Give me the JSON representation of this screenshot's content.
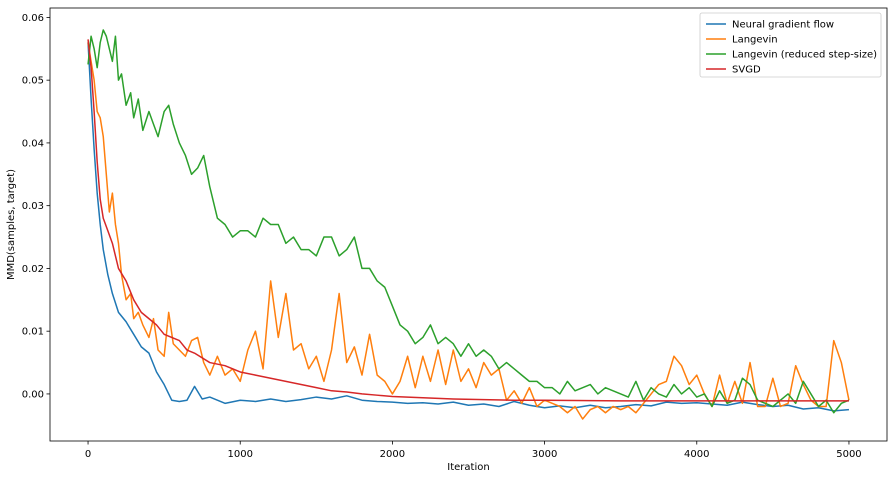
{
  "chart_data": {
    "type": "line",
    "title": "",
    "xlabel": "Iteration",
    "ylabel": "MMD(samples, target)",
    "xlim": [
      -250,
      5250
    ],
    "ylim": [
      -0.0075,
      0.0615
    ],
    "xticks": [
      0,
      1000,
      2000,
      3000,
      4000,
      5000
    ],
    "xtick_labels": [
      "0",
      "1000",
      "2000",
      "3000",
      "4000",
      "5000"
    ],
    "yticks": [
      0.0,
      0.01,
      0.02,
      0.03,
      0.04,
      0.05,
      0.06
    ],
    "ytick_labels": [
      "0.00",
      "0.01",
      "0.02",
      "0.03",
      "0.04",
      "0.05",
      "0.06"
    ],
    "grid": false,
    "legend_position": "top-right",
    "series": [
      {
        "name": "Neural gradient flow",
        "color": "#1f77b4",
        "x": [
          0,
          20,
          40,
          60,
          80,
          100,
          130,
          160,
          200,
          250,
          300,
          350,
          400,
          450,
          500,
          550,
          600,
          650,
          700,
          750,
          800,
          900,
          1000,
          1100,
          1200,
          1300,
          1400,
          1500,
          1600,
          1700,
          1800,
          1900,
          2000,
          2100,
          2200,
          2300,
          2400,
          2500,
          2600,
          2700,
          2800,
          2900,
          3000,
          3100,
          3200,
          3300,
          3400,
          3500,
          3600,
          3700,
          3800,
          3900,
          4000,
          4100,
          4200,
          4300,
          4400,
          4500,
          4600,
          4700,
          4800,
          4900,
          5000
        ],
        "y": [
          0.056,
          0.047,
          0.039,
          0.032,
          0.027,
          0.023,
          0.019,
          0.016,
          0.013,
          0.0115,
          0.0095,
          0.0075,
          0.0065,
          0.0035,
          0.0015,
          -0.001,
          -0.0012,
          -0.001,
          0.0012,
          -0.0008,
          -0.0005,
          -0.0015,
          -0.001,
          -0.0012,
          -0.0008,
          -0.0012,
          -0.0009,
          -0.0005,
          -0.0008,
          -0.0003,
          -0.001,
          -0.0012,
          -0.0013,
          -0.0015,
          -0.0014,
          -0.0016,
          -0.0013,
          -0.0018,
          -0.0016,
          -0.002,
          -0.0012,
          -0.0018,
          -0.0022,
          -0.0019,
          -0.0022,
          -0.0018,
          -0.0022,
          -0.002,
          -0.0017,
          -0.0019,
          -0.0013,
          -0.0015,
          -0.0014,
          -0.0016,
          -0.0018,
          -0.0013,
          -0.0017,
          -0.002,
          -0.0018,
          -0.0024,
          -0.0022,
          -0.0027,
          -0.0025
        ]
      },
      {
        "name": "Langevin",
        "color": "#ff7f0e",
        "x": [
          0,
          20,
          40,
          60,
          80,
          100,
          120,
          140,
          160,
          180,
          200,
          220,
          250,
          280,
          300,
          330,
          360,
          400,
          430,
          460,
          500,
          530,
          560,
          600,
          640,
          680,
          720,
          760,
          800,
          850,
          900,
          950,
          1000,
          1050,
          1100,
          1150,
          1200,
          1250,
          1300,
          1350,
          1400,
          1450,
          1500,
          1550,
          1600,
          1650,
          1700,
          1750,
          1800,
          1850,
          1900,
          1950,
          2000,
          2050,
          2100,
          2150,
          2200,
          2250,
          2300,
          2350,
          2400,
          2450,
          2500,
          2550,
          2600,
          2650,
          2700,
          2750,
          2800,
          2850,
          2900,
          2950,
          3000,
          3050,
          3100,
          3150,
          3200,
          3250,
          3300,
          3350,
          3400,
          3450,
          3500,
          3550,
          3600,
          3650,
          3700,
          3750,
          3800,
          3850,
          3900,
          3950,
          4000,
          4050,
          4100,
          4150,
          4200,
          4250,
          4300,
          4350,
          4400,
          4450,
          4500,
          4550,
          4600,
          4650,
          4700,
          4750,
          4800,
          4850,
          4900,
          4950,
          5000
        ],
        "y": [
          0.056,
          0.053,
          0.05,
          0.045,
          0.044,
          0.041,
          0.035,
          0.029,
          0.032,
          0.027,
          0.024,
          0.019,
          0.015,
          0.016,
          0.012,
          0.013,
          0.011,
          0.009,
          0.012,
          0.007,
          0.006,
          0.013,
          0.008,
          0.007,
          0.006,
          0.0085,
          0.009,
          0.005,
          0.003,
          0.006,
          0.003,
          0.004,
          0.002,
          0.007,
          0.01,
          0.004,
          0.018,
          0.009,
          0.016,
          0.007,
          0.008,
          0.004,
          0.006,
          0.002,
          0.007,
          0.016,
          0.005,
          0.0075,
          0.003,
          0.0095,
          0.003,
          0.002,
          0.0,
          0.002,
          0.006,
          0.001,
          0.006,
          0.002,
          0.007,
          0.0015,
          0.007,
          0.002,
          0.004,
          0.001,
          0.005,
          0.003,
          0.004,
          -0.001,
          0.0005,
          -0.0015,
          0.001,
          -0.002,
          -0.001,
          -0.0015,
          -0.002,
          -0.003,
          -0.002,
          -0.004,
          -0.0025,
          -0.002,
          -0.003,
          -0.002,
          -0.0025,
          -0.002,
          -0.003,
          -0.0015,
          0.0,
          0.0015,
          0.002,
          0.006,
          0.0045,
          0.0015,
          0.003,
          0.0,
          -0.002,
          0.003,
          -0.0015,
          0.002,
          -0.0015,
          0.005,
          -0.002,
          -0.002,
          0.0025,
          -0.002,
          -0.0015,
          0.0045,
          0.0015,
          -0.001,
          -0.002,
          -0.002,
          0.0085,
          0.005,
          -0.001
        ]
      },
      {
        "name": "Langevin (reduced step-size)",
        "color": "#2ca02c",
        "x": [
          0,
          20,
          40,
          60,
          80,
          100,
          120,
          140,
          160,
          180,
          200,
          220,
          250,
          280,
          300,
          330,
          360,
          400,
          430,
          460,
          500,
          530,
          560,
          600,
          640,
          680,
          720,
          760,
          800,
          850,
          900,
          950,
          1000,
          1050,
          1100,
          1150,
          1200,
          1250,
          1300,
          1350,
          1400,
          1450,
          1500,
          1550,
          1600,
          1650,
          1700,
          1750,
          1800,
          1850,
          1900,
          1950,
          2000,
          2050,
          2100,
          2150,
          2200,
          2250,
          2300,
          2350,
          2400,
          2450,
          2500,
          2550,
          2600,
          2650,
          2700,
          2750,
          2800,
          2850,
          2900,
          2950,
          3000,
          3050,
          3100,
          3150,
          3200,
          3250,
          3300,
          3350,
          3400,
          3450,
          3500,
          3550,
          3600,
          3650,
          3700,
          3750,
          3800,
          3850,
          3900,
          3950,
          4000,
          4050,
          4100,
          4150,
          4200,
          4250,
          4300,
          4350,
          4400,
          4450,
          4500,
          4550,
          4600,
          4650,
          4700,
          4750,
          4800,
          4850,
          4900,
          4950,
          5000
        ],
        "y": [
          0.0525,
          0.057,
          0.055,
          0.052,
          0.056,
          0.058,
          0.057,
          0.055,
          0.053,
          0.057,
          0.05,
          0.051,
          0.046,
          0.048,
          0.044,
          0.047,
          0.042,
          0.045,
          0.043,
          0.041,
          0.045,
          0.046,
          0.043,
          0.04,
          0.038,
          0.035,
          0.036,
          0.038,
          0.033,
          0.028,
          0.027,
          0.025,
          0.026,
          0.026,
          0.025,
          0.028,
          0.027,
          0.027,
          0.024,
          0.025,
          0.023,
          0.023,
          0.022,
          0.025,
          0.025,
          0.022,
          0.023,
          0.025,
          0.02,
          0.02,
          0.018,
          0.017,
          0.014,
          0.011,
          0.01,
          0.008,
          0.009,
          0.011,
          0.008,
          0.009,
          0.008,
          0.006,
          0.008,
          0.006,
          0.007,
          0.006,
          0.004,
          0.005,
          0.004,
          0.003,
          0.002,
          0.002,
          0.001,
          0.001,
          0.0,
          0.002,
          0.0005,
          0.001,
          0.0015,
          0.0,
          0.001,
          0.0005,
          0.0,
          -0.0005,
          0.002,
          -0.001,
          0.001,
          0.0,
          -0.0005,
          0.0015,
          0.0,
          0.001,
          -0.0005,
          0.0,
          -0.002,
          0.0005,
          -0.0015,
          -0.001,
          0.0025,
          0.0015,
          -0.001,
          -0.0015,
          -0.002,
          -0.001,
          0.0,
          -0.0015,
          0.002,
          0.0,
          -0.002,
          -0.001,
          -0.003,
          -0.0015,
          -0.001
        ]
      },
      {
        "name": "SVGD",
        "color": "#d62728",
        "x": [
          0,
          20,
          40,
          60,
          80,
          100,
          130,
          160,
          200,
          250,
          300,
          350,
          400,
          450,
          500,
          550,
          600,
          650,
          700,
          800,
          900,
          1000,
          1100,
          1200,
          1300,
          1400,
          1500,
          1600,
          1700,
          1800,
          1900,
          2000,
          2200,
          2400,
          2600,
          2800,
          3000,
          3500,
          4000,
          4500,
          5000
        ],
        "y": [
          0.0565,
          0.052,
          0.045,
          0.037,
          0.031,
          0.028,
          0.026,
          0.024,
          0.02,
          0.018,
          0.015,
          0.013,
          0.012,
          0.011,
          0.0095,
          0.009,
          0.0085,
          0.007,
          0.0065,
          0.005,
          0.0045,
          0.0035,
          0.003,
          0.0025,
          0.002,
          0.0015,
          0.001,
          0.0005,
          0.0003,
          0.0,
          -0.0002,
          -0.0004,
          -0.0006,
          -0.0008,
          -0.0009,
          -0.001,
          -0.001,
          -0.0011,
          -0.0011,
          -0.0011,
          -0.0011
        ]
      }
    ]
  }
}
